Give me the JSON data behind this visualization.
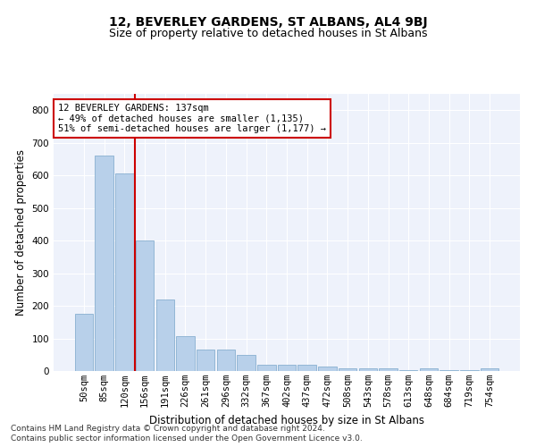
{
  "title1": "12, BEVERLEY GARDENS, ST ALBANS, AL4 9BJ",
  "title2": "Size of property relative to detached houses in St Albans",
  "xlabel": "Distribution of detached houses by size in St Albans",
  "ylabel": "Number of detached properties",
  "bar_labels": [
    "50sqm",
    "85sqm",
    "120sqm",
    "156sqm",
    "191sqm",
    "226sqm",
    "261sqm",
    "296sqm",
    "332sqm",
    "367sqm",
    "402sqm",
    "437sqm",
    "472sqm",
    "508sqm",
    "543sqm",
    "578sqm",
    "613sqm",
    "648sqm",
    "684sqm",
    "719sqm",
    "754sqm"
  ],
  "bar_values": [
    175,
    660,
    605,
    400,
    218,
    107,
    67,
    67,
    48,
    20,
    18,
    18,
    14,
    9,
    9,
    9,
    3,
    9,
    3,
    3,
    7
  ],
  "bar_color": "#b8d0ea",
  "bar_edge_color": "#88afd0",
  "vline_x": 2.5,
  "vline_color": "#cc0000",
  "annotation_line1": "12 BEVERLEY GARDENS: 137sqm",
  "annotation_line2": "← 49% of detached houses are smaller (1,135)",
  "annotation_line3": "51% of semi-detached houses are larger (1,177) →",
  "annotation_box_color": "#ffffff",
  "annotation_box_edge": "#cc0000",
  "ylim": [
    0,
    850
  ],
  "yticks": [
    0,
    100,
    200,
    300,
    400,
    500,
    600,
    700,
    800
  ],
  "background_color": "#eef2fb",
  "footer1": "Contains HM Land Registry data © Crown copyright and database right 2024.",
  "footer2": "Contains public sector information licensed under the Open Government Licence v3.0.",
  "title1_fontsize": 10,
  "title2_fontsize": 9,
  "xlabel_fontsize": 8.5,
  "ylabel_fontsize": 8.5,
  "tick_fontsize": 7.5,
  "annotation_fontsize": 7.5,
  "footer_fontsize": 6.5
}
